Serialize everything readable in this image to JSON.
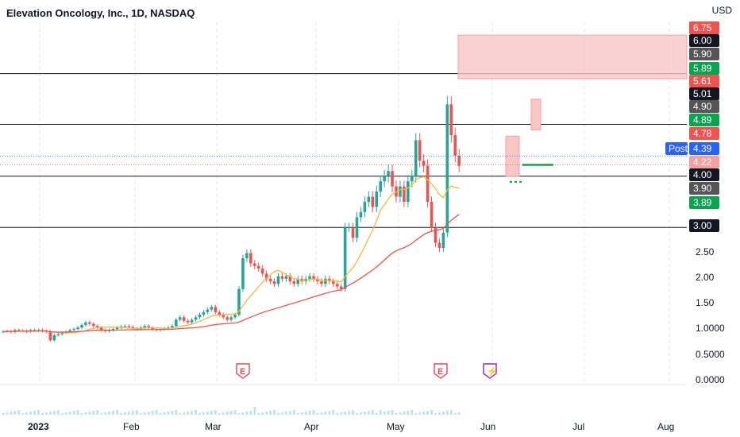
{
  "header": {
    "title": "Elevation Oncology, Inc., 1D, NASDAQ",
    "currency": "USD"
  },
  "colors": {
    "up": "#26a69a",
    "down": "#ef5350",
    "ma_fast": "#f5b73b",
    "ma_slow": "#ef5350",
    "zone": "#f9c6c6",
    "line": "#131722",
    "post_tag": "#2962ff"
  },
  "chart_data": {
    "type": "candlestick",
    "title": "Elevation Oncology, Inc., 1D, NASDAQ",
    "ylabel": "USD",
    "x_ticks": [
      "2023",
      "Feb",
      "Mar",
      "Apr",
      "May",
      "Jun",
      "Jul",
      "Aug"
    ],
    "y_ticks": [
      "2.50",
      "2.00",
      "1.50",
      "1.0000",
      "0.5000",
      "0.0000"
    ],
    "price_range": [
      0,
      7
    ],
    "horizontal_levels": [
      6.0,
      5.01,
      4.0,
      3.0
    ],
    "price_tags": [
      {
        "label": "6.75",
        "color": "#ef5350"
      },
      {
        "label": "6.00",
        "color": "#131722"
      },
      {
        "label": "5.90",
        "color": "#555555"
      },
      {
        "label": "5.89",
        "color": "#0aa34f"
      },
      {
        "label": "5.61",
        "color": "#ef5350"
      },
      {
        "label": "5.01",
        "color": "#131722"
      },
      {
        "label": "4.90",
        "color": "#555555"
      },
      {
        "label": "4.89",
        "color": "#0aa34f"
      },
      {
        "label": "4.78",
        "color": "#ef5350"
      },
      {
        "label": "4.39",
        "color": "#2962ff"
      },
      {
        "label": "4.22",
        "color": "#f4a0a0"
      },
      {
        "label": "4.00",
        "color": "#131722"
      },
      {
        "label": "3.90",
        "color": "#555555"
      },
      {
        "label": "3.89",
        "color": "#0aa34f"
      },
      {
        "label": "3.00",
        "color": "#131722"
      }
    ],
    "post_label": "Post",
    "events": [
      {
        "label": "E",
        "x": "Mar"
      },
      {
        "label": "E",
        "x": "May"
      },
      {
        "label": "⚡",
        "x": "Jun"
      }
    ],
    "closes": [
      0.97,
      0.98,
      0.96,
      1.0,
      0.99,
      0.98,
      0.97,
      1.0,
      0.99,
      1.0,
      0.98,
      0.97,
      0.8,
      0.9,
      0.92,
      0.95,
      0.97,
      1.0,
      1.02,
      1.05,
      1.1,
      1.15,
      1.12,
      1.08,
      1.05,
      1.0,
      0.98,
      1.0,
      1.02,
      1.05,
      1.07,
      1.08,
      1.06,
      1.03,
      1.02,
      1.05,
      1.08,
      1.04,
      1.02,
      1.0,
      1.02,
      1.03,
      1.05,
      1.08,
      1.2,
      1.25,
      1.18,
      1.15,
      1.2,
      1.25,
      1.3,
      1.35,
      1.4,
      1.45,
      1.35,
      1.3,
      1.25,
      1.2,
      1.25,
      1.3,
      1.8,
      2.4,
      2.5,
      2.3,
      2.25,
      2.2,
      2.1,
      2.0,
      1.95,
      1.9,
      2.05,
      2.0,
      2.05,
      1.95,
      1.9,
      2.0,
      1.95,
      2.0,
      2.05,
      2.0,
      1.95,
      1.9,
      2.0,
      1.95,
      1.9,
      1.85,
      1.8,
      3.0,
      3.0,
      2.8,
      3.2,
      3.3,
      3.5,
      3.6,
      3.4,
      3.7,
      3.9,
      4.0,
      4.1,
      3.8,
      3.6,
      3.8,
      3.5,
      3.9,
      4.0,
      4.7,
      4.3,
      4.2,
      3.5,
      3.0,
      2.7,
      2.6,
      2.9,
      5.4,
      4.8,
      4.4,
      4.2
    ]
  }
}
